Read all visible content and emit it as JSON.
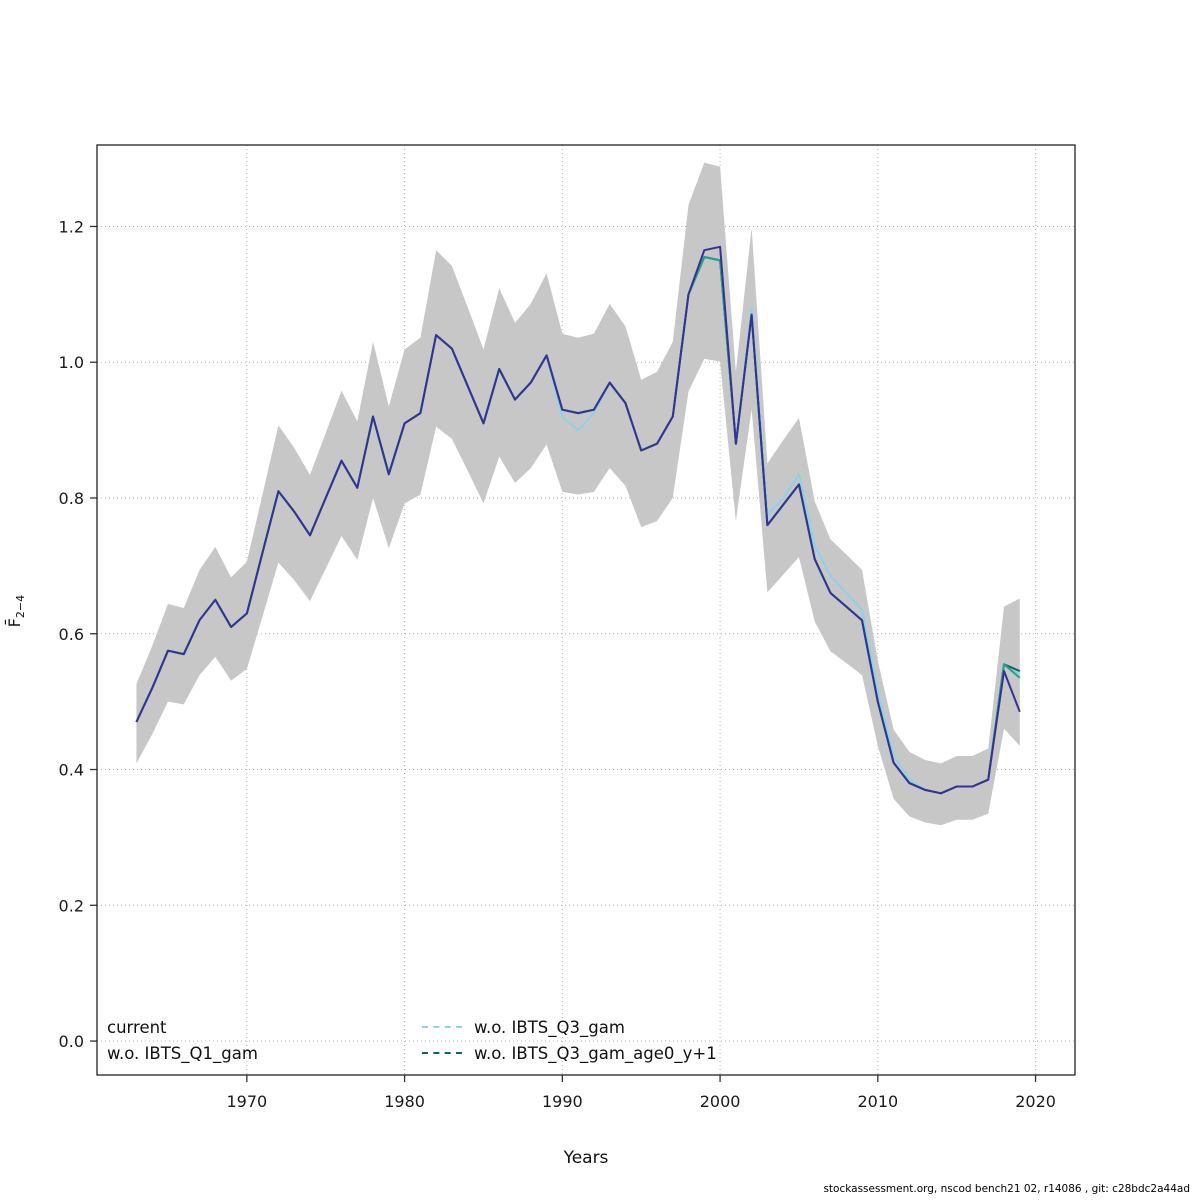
{
  "page": {
    "footer": "stockassessment.org, nscod bench21 02, r14086 , git: c28bdc2a44ad"
  },
  "chart_data": {
    "type": "line",
    "title": "",
    "xlabel": "Years",
    "ylabel": "F̄2−4",
    "ylabel_base": "F̄",
    "ylabel_sub": "2−4",
    "xlim": [
      1960.5,
      2022.5
    ],
    "ylim": [
      -0.05,
      1.32
    ],
    "grid": "dotted",
    "x_ticks": [
      1970,
      1980,
      1990,
      2000,
      2010,
      2020
    ],
    "y_ticks": [
      "0.0",
      "0.2",
      "0.4",
      "0.6",
      "0.8",
      "1.0",
      "1.2"
    ],
    "x": [
      1963,
      1964,
      1965,
      1966,
      1967,
      1968,
      1969,
      1970,
      1971,
      1972,
      1973,
      1974,
      1975,
      1976,
      1977,
      1978,
      1979,
      1980,
      1981,
      1982,
      1983,
      1984,
      1985,
      1986,
      1987,
      1988,
      1989,
      1990,
      1991,
      1992,
      1993,
      1994,
      1995,
      1996,
      1997,
      1998,
      1999,
      2000,
      2001,
      2002,
      2003,
      2004,
      2005,
      2006,
      2007,
      2008,
      2009,
      2010,
      2011,
      2012,
      2013,
      2014,
      2015,
      2016,
      2017,
      2018,
      2019
    ],
    "band": {
      "color": "#c7c7c7",
      "lower": [
        0.409,
        0.452,
        0.5,
        0.496,
        0.539,
        0.566,
        0.531,
        0.548,
        0.626,
        0.705,
        0.679,
        0.648,
        0.696,
        0.744,
        0.709,
        0.8,
        0.726,
        0.792,
        0.805,
        0.905,
        0.887,
        0.84,
        0.792,
        0.861,
        0.822,
        0.844,
        0.879,
        0.809,
        0.805,
        0.809,
        0.844,
        0.818,
        0.757,
        0.766,
        0.8,
        0.957,
        1.005,
        1.001,
        0.766,
        0.931,
        0.661,
        0.687,
        0.713,
        0.618,
        0.574,
        0.557,
        0.539,
        0.435,
        0.357,
        0.331,
        0.322,
        0.318,
        0.326,
        0.326,
        0.335,
        0.46,
        0.435
      ],
      "upper": [
        0.526,
        0.582,
        0.644,
        0.638,
        0.694,
        0.728,
        0.683,
        0.706,
        0.806,
        0.907,
        0.874,
        0.834,
        0.896,
        0.958,
        0.913,
        1.03,
        0.935,
        1.019,
        1.036,
        1.165,
        1.142,
        1.081,
        1.019,
        1.109,
        1.058,
        1.086,
        1.131,
        1.042,
        1.036,
        1.042,
        1.086,
        1.053,
        0.974,
        0.986,
        1.03,
        1.232,
        1.294,
        1.288,
        0.986,
        1.198,
        0.851,
        0.885,
        0.918,
        0.795,
        0.739,
        0.717,
        0.694,
        0.56,
        0.459,
        0.426,
        0.414,
        0.409,
        0.42,
        0.42,
        0.431,
        0.64,
        0.652
      ]
    },
    "series": [
      {
        "name": "w.o. IBTS_Q3_gam",
        "color": "#8ed1ea",
        "dash": "dashed",
        "values": [
          0.47,
          0.52,
          0.575,
          0.57,
          0.62,
          0.65,
          0.61,
          0.63,
          0.72,
          0.81,
          0.78,
          0.745,
          0.8,
          0.855,
          0.815,
          0.92,
          0.835,
          0.91,
          0.925,
          1.04,
          1.02,
          0.965,
          0.91,
          0.99,
          0.945,
          0.97,
          1.01,
          0.92,
          0.9,
          0.925,
          0.97,
          0.94,
          0.87,
          0.88,
          0.92,
          1.1,
          1.155,
          1.15,
          0.88,
          1.08,
          0.775,
          0.8,
          0.835,
          0.73,
          0.685,
          0.66,
          0.635,
          0.515,
          0.42,
          0.385,
          0.37,
          0.365,
          0.375,
          0.375,
          0.385,
          0.555,
          0.54
        ]
      },
      {
        "name": "w.o. IBTS_Q3_gam_age0_y+1",
        "color": "#11665a",
        "dash": "dashed",
        "values": [
          0.47,
          0.52,
          0.575,
          0.57,
          0.62,
          0.65,
          0.61,
          0.63,
          0.72,
          0.81,
          0.78,
          0.745,
          0.8,
          0.855,
          0.815,
          0.92,
          0.835,
          0.91,
          0.925,
          1.04,
          1.02,
          0.965,
          0.91,
          0.99,
          0.945,
          0.97,
          1.01,
          0.93,
          0.925,
          0.93,
          0.97,
          0.94,
          0.87,
          0.88,
          0.92,
          1.1,
          1.155,
          1.15,
          0.88,
          1.07,
          0.76,
          0.79,
          0.82,
          0.71,
          0.66,
          0.64,
          0.62,
          0.5,
          0.41,
          0.38,
          0.37,
          0.365,
          0.375,
          0.375,
          0.385,
          0.555,
          0.545
        ]
      },
      {
        "name": "w.o. IBTS_Q1_gam",
        "color": "#29a08a",
        "dash": "solid",
        "values": [
          0.47,
          0.52,
          0.575,
          0.57,
          0.62,
          0.65,
          0.61,
          0.63,
          0.72,
          0.81,
          0.78,
          0.745,
          0.8,
          0.855,
          0.815,
          0.92,
          0.835,
          0.91,
          0.925,
          1.04,
          1.02,
          0.965,
          0.91,
          0.99,
          0.945,
          0.97,
          1.01,
          0.93,
          0.925,
          0.93,
          0.97,
          0.94,
          0.87,
          0.88,
          0.92,
          1.1,
          1.155,
          1.15,
          0.88,
          1.07,
          0.76,
          0.79,
          0.82,
          0.71,
          0.66,
          0.64,
          0.62,
          0.5,
          0.41,
          0.38,
          0.37,
          0.365,
          0.375,
          0.375,
          0.385,
          0.555,
          0.535
        ]
      },
      {
        "name": "current",
        "color": "#343394",
        "dash": "solid",
        "values": [
          0.47,
          0.52,
          0.575,
          0.57,
          0.62,
          0.65,
          0.61,
          0.63,
          0.72,
          0.81,
          0.78,
          0.745,
          0.8,
          0.855,
          0.815,
          0.92,
          0.835,
          0.91,
          0.925,
          1.04,
          1.02,
          0.965,
          0.91,
          0.99,
          0.945,
          0.97,
          1.01,
          0.93,
          0.925,
          0.93,
          0.97,
          0.94,
          0.87,
          0.88,
          0.92,
          1.1,
          1.165,
          1.17,
          0.88,
          1.07,
          0.76,
          0.79,
          0.82,
          0.71,
          0.66,
          0.64,
          0.62,
          0.5,
          0.41,
          0.38,
          0.37,
          0.365,
          0.375,
          0.375,
          0.385,
          0.545,
          0.485
        ]
      }
    ],
    "legend": {
      "position": "bottom-left",
      "items": [
        {
          "label": "current",
          "column": 1,
          "swatch": ""
        },
        {
          "label": "w.o. IBTS_Q1_gam",
          "column": 1,
          "swatch": ""
        },
        {
          "label": "w.o. IBTS_Q3_gam",
          "column": 2,
          "swatch": "#8ed1ea"
        },
        {
          "label": "w.o. IBTS_Q3_gam_age0_y+1",
          "column": 2,
          "swatch": "#11665a"
        }
      ]
    }
  }
}
